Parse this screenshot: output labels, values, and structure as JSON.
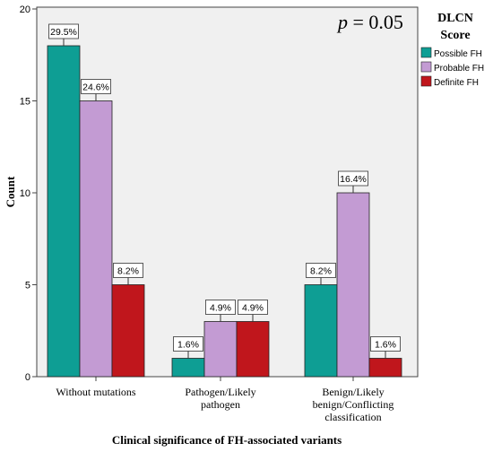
{
  "chart_data": {
    "type": "bar",
    "title": "",
    "annotation": {
      "p_label": "p",
      "p_rest": " = 0.05"
    },
    "xlabel": "Clinical significance of FH-associated variants",
    "ylabel": "Count",
    "ylim": [
      0,
      20
    ],
    "yticks": [
      "0",
      "5",
      "10",
      "15",
      "20"
    ],
    "categories": [
      [
        "Without mutations"
      ],
      [
        "Pathogen/Likely",
        "pathogen"
      ],
      [
        "Benign/Likely",
        "benign/Conflicting",
        "classification"
      ]
    ],
    "legend": {
      "title_line1": "DLCN",
      "title_line2": "Score",
      "placement": "top-right, outside plot"
    },
    "grid": false,
    "series": [
      {
        "name": "Possible FH",
        "color": "#0e9e94",
        "values": [
          18,
          1,
          5
        ],
        "labels": [
          "29.5%",
          "1.6%",
          "8.2%"
        ]
      },
      {
        "name": "Probable FH",
        "color": "#c39bd3",
        "values": [
          15,
          3,
          10
        ],
        "labels": [
          "24.6%",
          "4.9%",
          "16.4%"
        ]
      },
      {
        "name": "Definite FH",
        "color": "#c0161c",
        "values": [
          5,
          3,
          1
        ],
        "labels": [
          "8.2%",
          "4.9%",
          "1.6%"
        ]
      }
    ]
  }
}
